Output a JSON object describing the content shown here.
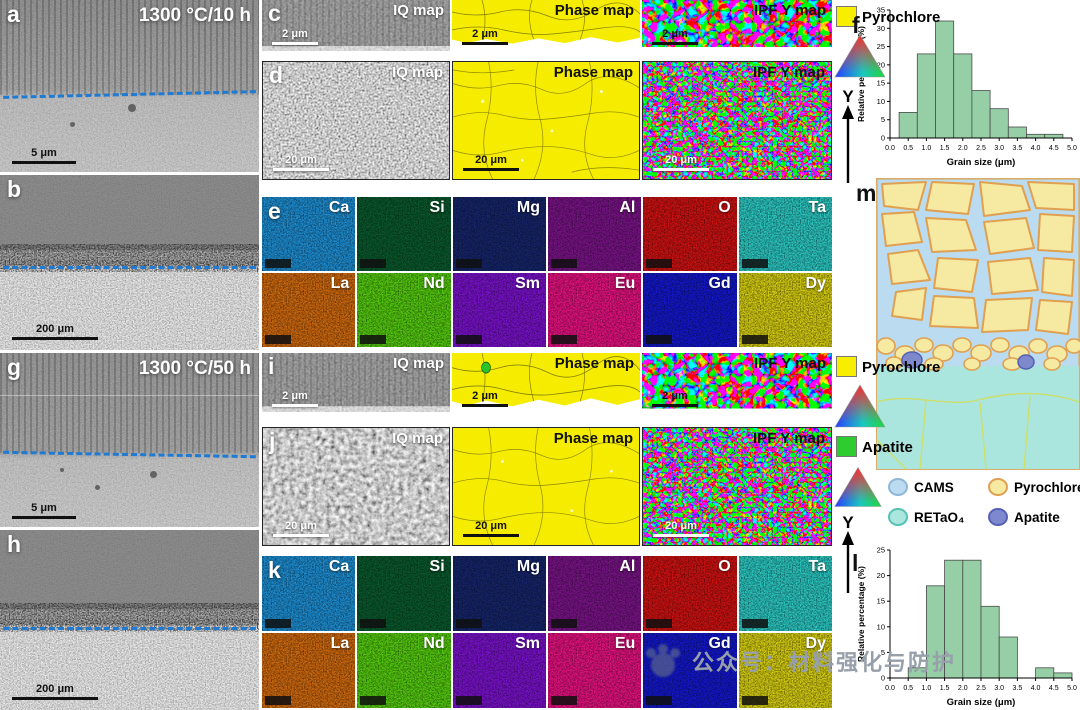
{
  "sem": {
    "a": {
      "letter": "a",
      "condition": "1300 °C/10 h",
      "scale": "5 μm"
    },
    "b": {
      "letter": "b",
      "scale": "200 μm"
    },
    "g": {
      "letter": "g",
      "condition": "1300 °C/50 h",
      "scale": "5 μm"
    },
    "h": {
      "letter": "h",
      "scale": "200 μm"
    }
  },
  "ebsd": {
    "c": {
      "letter": "c",
      "scale": "2 μm",
      "maps": [
        "IQ map",
        "Phase map",
        "IPF Y map"
      ]
    },
    "d": {
      "letter": "d",
      "scale": "20 μm",
      "maps": [
        "IQ map",
        "Phase map",
        "IPF Y map"
      ]
    },
    "i": {
      "letter": "i",
      "scale": "2 μm",
      "maps": [
        "IQ map",
        "Phase map",
        "IPF Y map"
      ]
    },
    "j": {
      "letter": "j",
      "scale": "20 μm",
      "maps": [
        "IQ map",
        "Phase map",
        "IPF Y map"
      ]
    }
  },
  "eds": {
    "e_letter": "e",
    "k_letter": "k",
    "rows": [
      [
        "Ca",
        "Si",
        "Mg",
        "Al",
        "O",
        "Ta"
      ],
      [
        "La",
        "Nd",
        "Sm",
        "Eu",
        "Gd",
        "Dy"
      ]
    ],
    "colors": {
      "Ca": "#1e8ed2",
      "Si": "#0a5a2e",
      "Mg": "#16266c",
      "Al": "#7a1488",
      "O": "#d01212",
      "Ta": "#2cc8c2",
      "La": "#d06a0e",
      "Nd": "#55cc0e",
      "Sm": "#7a12cc",
      "Eu": "#e61280",
      "Gd": "#1418cc",
      "Dy": "#d6ce10"
    }
  },
  "legend_top": {
    "pyrochlore": "Pyrochlore",
    "axis": "Y",
    "pyrochlore_color": "#f8ee00"
  },
  "legend_bottom": {
    "pyrochlore": "Pyrochlore",
    "apatite": "Apatite",
    "axis": "Y",
    "pyrochlore_color": "#f8ee00",
    "apatite_color": "#2ecc2e"
  },
  "hist_f_letter": "f",
  "hist_l_letter": "l",
  "schematic": {
    "letter": "m",
    "legend": [
      {
        "label": "CAMS",
        "color": "#badbf0"
      },
      {
        "label": "Pyrochlore",
        "color": "#f6e9a2"
      },
      {
        "label": "RETaO₄",
        "color": "#abe6de"
      },
      {
        "label": "Apatite",
        "color": "#7e88cc"
      }
    ]
  },
  "watermark": {
    "text": "公众号：材料强化与防护"
  },
  "chart_data": [
    {
      "id": "f",
      "type": "bar",
      "title": "",
      "xlabel": "Grain size (μm)",
      "ylabel": "Relative percentage (%)",
      "xlim": [
        0,
        5
      ],
      "ylim": [
        0,
        35
      ],
      "ytick_step": 5,
      "xtick_step": 0.5,
      "bin_start": 0.25,
      "bin_width": 0.5,
      "values": [
        7,
        23,
        32,
        23,
        13,
        8,
        3,
        1,
        1
      ],
      "bar_color": "#96cfa6",
      "legend_position": "none",
      "grid": false
    },
    {
      "id": "l",
      "type": "bar",
      "title": "",
      "xlabel": "Grain size (μm)",
      "ylabel": "Relative percentage (%)",
      "xlim": [
        0,
        5
      ],
      "ylim": [
        0,
        25
      ],
      "ytick_step": 5,
      "xtick_step": 0.5,
      "bin_start": 0.5,
      "bin_width": 0.5,
      "values": [
        2,
        18,
        23,
        23,
        14,
        8,
        0,
        2,
        1
      ],
      "bar_color": "#96cfa6",
      "legend_position": "none",
      "grid": false
    }
  ]
}
